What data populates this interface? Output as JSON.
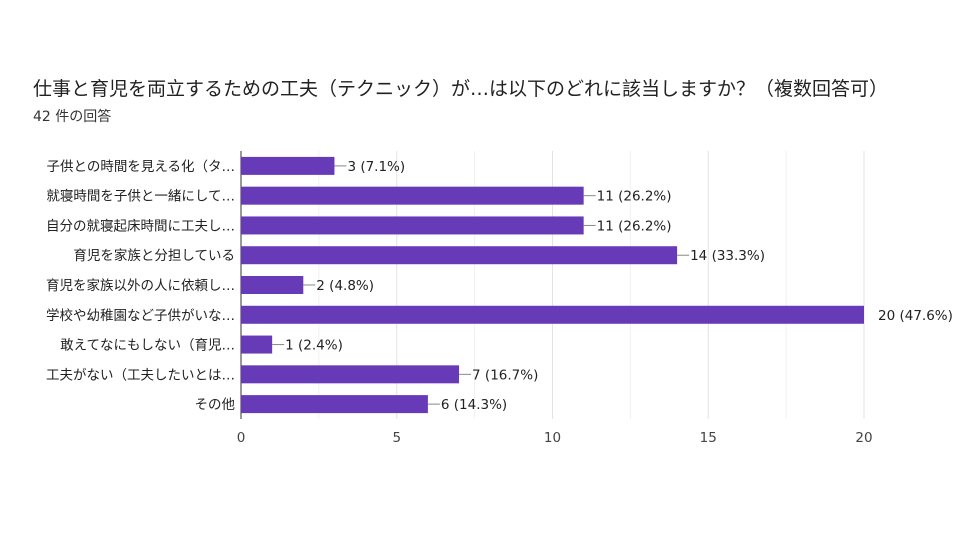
{
  "chart_data": {
    "type": "bar",
    "orientation": "horizontal",
    "title": "仕事と育児を両立するための工夫（テクニック）が…は以下のどれに該当しますか？（複数回答可）",
    "subtitle": "42 件の回答",
    "categories": [
      "子供との時間を見える化（タ…",
      "就寝時間を子供と一緒にして…",
      "自分の就寝起床時間に工夫し…",
      "育児を家族と分担している",
      "育児を家族以外の人に依頼し…",
      "学校や幼稚園など子供がいな…",
      "敢えてなにもしない（育児…",
      "工夫がない（工夫したいとは…",
      "その他"
    ],
    "values": [
      3,
      11,
      11,
      14,
      2,
      20,
      1,
      7,
      6
    ],
    "data_labels": [
      "3 (7.1%)",
      "11 (26.2%)",
      "11 (26.2%)",
      "14 (33.3%)",
      "2 (4.8%)",
      "20 (47.6%)",
      "1 (2.4%)",
      "7 (16.7%)",
      "6 (14.3%)"
    ],
    "xlim": [
      0,
      20
    ],
    "xticks": [
      "0",
      "5",
      "10",
      "15",
      "20"
    ],
    "grid": true,
    "bar_color": "#673ab7"
  }
}
